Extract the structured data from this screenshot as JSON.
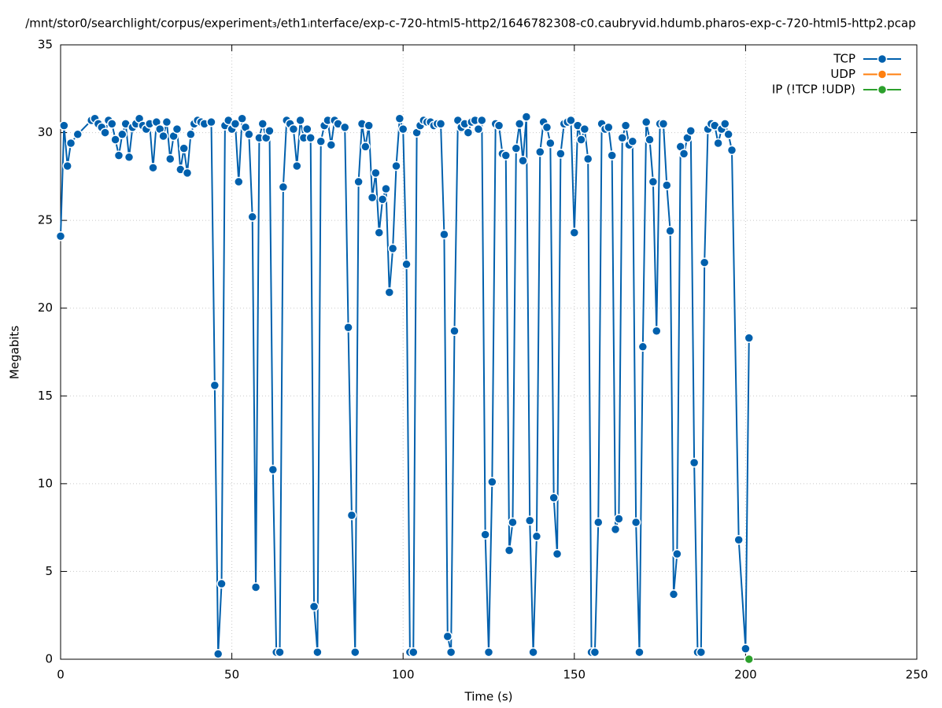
{
  "chart_data": {
    "type": "line",
    "title": "/mnt/stor0/searchlight/corpus/experiment₃/eth1ᵢnterface/exp-c-720-html5-http2/1646782308-c0.caubryvid.hdumb.pharos-exp-c-720-html5-http2.pcap",
    "xlabel": "Time (s)",
    "ylabel": "Megabits",
    "xlim": [
      0,
      250
    ],
    "ylim": [
      0,
      35
    ],
    "xticks": [
      0,
      50,
      100,
      150,
      200,
      250
    ],
    "yticks": [
      0,
      5,
      10,
      15,
      20,
      25,
      30,
      35
    ],
    "grid": true,
    "legend": "upper right",
    "series": [
      {
        "name": "TCP",
        "color": "#0060ad",
        "x": [
          0,
          1,
          2,
          3,
          5,
          9,
          10,
          11,
          12,
          13,
          14,
          15,
          16,
          17,
          18,
          19,
          20,
          21,
          22,
          23,
          24,
          25,
          26,
          27,
          28,
          29,
          30,
          31,
          32,
          33,
          34,
          35,
          36,
          37,
          38,
          39,
          40,
          41,
          42,
          44,
          45,
          46,
          47,
          48,
          49,
          50,
          51,
          52,
          53,
          54,
          55,
          56,
          57,
          58,
          59,
          60,
          61,
          62,
          63,
          64,
          65,
          66,
          67,
          68,
          69,
          70,
          71,
          72,
          73,
          74,
          75,
          76,
          77,
          78,
          79,
          80,
          81,
          83,
          84,
          85,
          86,
          87,
          88,
          89,
          90,
          91,
          92,
          93,
          94,
          95,
          96,
          97,
          98,
          99,
          100,
          101,
          102,
          103,
          104,
          105,
          106,
          107,
          108,
          109,
          110,
          111,
          112,
          113,
          114,
          115,
          116,
          117,
          118,
          119,
          120,
          121,
          122,
          123,
          124,
          125,
          126,
          127,
          128,
          129,
          130,
          131,
          132,
          133,
          134,
          135,
          136,
          137,
          138,
          139,
          140,
          141,
          142,
          143,
          144,
          145,
          146,
          147,
          148,
          149,
          150,
          151,
          152,
          153,
          154,
          155,
          156,
          157,
          158,
          159,
          160,
          161,
          162,
          163,
          164,
          165,
          166,
          167,
          168,
          169,
          170,
          171,
          172,
          173,
          174,
          175,
          176,
          177,
          178,
          179,
          180,
          181,
          182,
          183,
          184,
          185,
          186,
          187,
          188,
          189,
          190,
          191,
          192,
          193,
          194,
          195,
          196,
          198,
          200,
          201
        ],
        "values": [
          24.1,
          30.4,
          28.1,
          29.4,
          29.9,
          30.7,
          30.8,
          30.5,
          30.3,
          30.0,
          30.7,
          30.5,
          29.6,
          28.7,
          29.9,
          30.5,
          28.6,
          30.3,
          30.5,
          30.8,
          30.4,
          30.2,
          30.5,
          28.0,
          30.6,
          30.2,
          29.8,
          30.6,
          28.5,
          29.8,
          30.2,
          27.9,
          29.1,
          27.7,
          29.9,
          30.5,
          30.7,
          30.6,
          30.5,
          30.6,
          15.6,
          0.3,
          4.3,
          30.4,
          30.7,
          30.2,
          30.5,
          27.2,
          30.8,
          30.3,
          29.9,
          25.2,
          4.1,
          29.7,
          30.5,
          29.7,
          30.1,
          10.8,
          0.4,
          0.4,
          26.9,
          30.7,
          30.5,
          30.2,
          28.1,
          30.7,
          29.7,
          30.2,
          29.7,
          3.0,
          0.4,
          29.5,
          30.4,
          30.7,
          29.3,
          30.7,
          30.5,
          30.3,
          18.9,
          8.2,
          0.4,
          27.2,
          30.5,
          29.2,
          30.4,
          26.3,
          27.7,
          24.3,
          26.2,
          26.8,
          20.9,
          23.4,
          28.1,
          30.8,
          30.2,
          22.5,
          0.4,
          0.4,
          30.0,
          30.4,
          30.7,
          30.6,
          30.6,
          30.4,
          30.5,
          30.5,
          24.2,
          1.3,
          0.4,
          18.7,
          30.7,
          30.3,
          30.5,
          30.0,
          30.6,
          30.7,
          30.2,
          30.7,
          7.1,
          0.4,
          10.1,
          30.5,
          30.4,
          28.8,
          28.7,
          6.2,
          7.8,
          29.1,
          30.5,
          28.4,
          30.9,
          7.9,
          0.4,
          7.0,
          28.9,
          30.6,
          30.3,
          29.4,
          9.2,
          6.0,
          28.8,
          30.5,
          30.6,
          30.7,
          24.3,
          30.4,
          29.6,
          30.2,
          28.5,
          0.4,
          0.4,
          7.8,
          30.5,
          30.2,
          30.3,
          28.7,
          7.4,
          8.0,
          29.7,
          30.4,
          29.3,
          29.5,
          7.8,
          0.4,
          17.8,
          30.6,
          29.6,
          27.2,
          18.7,
          30.5,
          30.5,
          27.0,
          24.4,
          3.7,
          6.0,
          29.2,
          28.8,
          29.7,
          30.1,
          11.2,
          0.4,
          0.4,
          22.6,
          30.2,
          30.5,
          30.4,
          29.4,
          30.2,
          30.5,
          29.9,
          29.0,
          6.8,
          0.6,
          18.3
        ]
      },
      {
        "name": "UDP",
        "color": "#ff7f0e",
        "x": [],
        "values": []
      },
      {
        "name": "IP (!TCP  !UDP)",
        "color": "#2ca02c",
        "x": [
          201
        ],
        "values": [
          0
        ]
      }
    ]
  }
}
